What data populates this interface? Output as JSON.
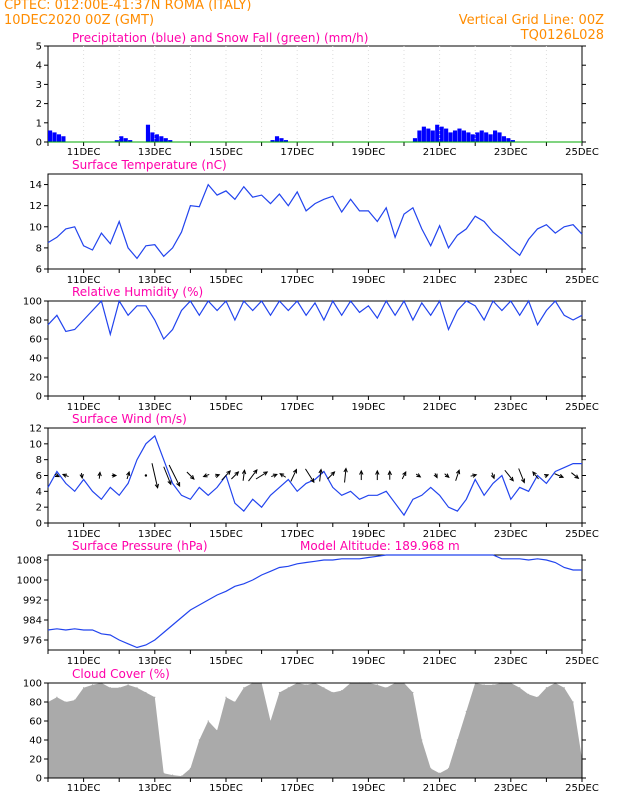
{
  "header": {
    "line1_left": "CPTEC:   012:00E-41:37N   ROMA (ITALY)",
    "line2_left": "10DEC2020 00Z (GMT)",
    "line2_right": "Vertical Grid Line: 00Z",
    "line3_right": "TQ0126L028"
  },
  "colors": {
    "header": "#ff8c00",
    "title": "#ff00aa",
    "precip": "#0000ff",
    "snow": "#00aa00",
    "line": "#2244ee",
    "cloud": "#aaaaaa"
  },
  "date_labels": [
    "11DEC",
    "13DEC",
    "15DEC",
    "17DEC",
    "19DEC",
    "21DEC",
    "23DEC",
    "25DEC"
  ],
  "chart_data": [
    {
      "type": "bar",
      "title": "Precipitation (blue) and Snow Fall (green) (mm/h)",
      "ylim": [
        0,
        5
      ],
      "yticks": [
        0,
        1,
        2,
        3,
        4,
        5
      ],
      "x_start": "10DEC2020 00Z",
      "step_hours": 3,
      "series": [
        {
          "name": "Precipitation",
          "color": "#0000ff",
          "values": [
            0.6,
            0.5,
            0.4,
            0.3,
            0,
            0,
            0,
            0,
            0,
            0,
            0,
            0,
            0,
            0,
            0,
            0.1,
            0.3,
            0.2,
            0.1,
            0,
            0,
            0,
            0.9,
            0.5,
            0.4,
            0.3,
            0.2,
            0.1,
            0,
            0,
            0,
            0,
            0,
            0,
            0,
            0,
            0,
            0,
            0,
            0,
            0,
            0,
            0,
            0,
            0,
            0,
            0,
            0,
            0,
            0,
            0.1,
            0.3,
            0.2,
            0.1,
            0,
            0,
            0,
            0,
            0,
            0,
            0,
            0,
            0,
            0,
            0,
            0,
            0,
            0,
            0,
            0,
            0,
            0,
            0,
            0,
            0,
            0,
            0,
            0,
            0,
            0,
            0,
            0,
            0.2,
            0.6,
            0.8,
            0.7,
            0.6,
            0.9,
            0.8,
            0.7,
            0.5,
            0.6,
            0.7,
            0.6,
            0.5,
            0.4,
            0.5,
            0.6,
            0.5,
            0.4,
            0.6,
            0.5,
            0.3,
            0.2,
            0.1,
            0,
            0,
            0,
            0,
            0,
            0,
            0,
            0,
            0,
            0,
            0,
            0,
            0,
            0,
            0,
            0,
            0,
            0,
            0,
            0,
            0
          ]
        },
        {
          "name": "Snow Fall",
          "color": "#00aa00",
          "values": [
            0,
            0,
            0,
            0,
            0,
            0,
            0,
            0,
            0,
            0,
            0,
            0,
            0,
            0,
            0,
            0,
            0,
            0,
            0,
            0,
            0,
            0,
            0,
            0,
            0,
            0,
            0,
            0,
            0,
            0,
            0,
            0,
            0,
            0,
            0,
            0,
            0,
            0,
            0,
            0,
            0,
            0,
            0,
            0,
            0,
            0,
            0,
            0,
            0,
            0,
            0,
            0,
            0,
            0,
            0,
            0,
            0,
            0,
            0,
            0,
            0,
            0,
            0,
            0,
            0,
            0,
            0,
            0,
            0,
            0,
            0,
            0,
            0,
            0,
            0,
            0,
            0,
            0,
            0,
            0,
            0,
            0,
            0,
            0,
            0,
            0,
            0,
            0,
            0,
            0,
            0,
            0,
            0,
            0,
            0,
            0,
            0,
            0,
            0,
            0,
            0,
            0,
            0,
            0,
            0,
            0,
            0,
            0,
            0,
            0,
            0,
            0,
            0,
            0,
            0,
            0,
            0,
            0,
            0,
            0,
            0
          ]
        }
      ]
    },
    {
      "type": "line",
      "title": "Surface Temperature (nC)",
      "ylim": [
        6,
        15
      ],
      "yticks": [
        6,
        8,
        10,
        12,
        14
      ],
      "x_days": [
        0.0,
        0.25,
        0.5,
        0.75,
        1.0,
        1.25,
        1.5,
        1.75,
        2.0,
        2.25,
        2.5,
        2.75,
        3.0,
        3.25,
        3.5,
        3.75,
        4.0,
        4.25,
        4.5,
        4.75,
        5.0,
        5.25,
        5.5,
        5.75,
        6.0,
        6.25,
        6.5,
        6.75,
        7.0,
        7.25,
        7.5,
        7.75,
        8.0,
        8.25,
        8.5,
        8.75,
        9.0,
        9.25,
        9.5,
        9.75,
        10.0,
        10.25,
        10.5,
        10.75,
        11.0,
        11.25,
        11.5,
        11.75,
        12.0,
        12.25,
        12.5,
        12.75,
        13.0,
        13.25,
        13.5,
        13.75,
        14.0,
        14.25,
        14.5,
        14.75,
        15.0
      ],
      "values": [
        8.5,
        9.0,
        9.8,
        10.0,
        8.2,
        7.8,
        9.4,
        8.4,
        10.5,
        8.0,
        7.0,
        8.2,
        8.3,
        7.2,
        8.0,
        9.5,
        12.0,
        11.9,
        14.0,
        13.0,
        13.4,
        12.6,
        13.8,
        12.8,
        13.0,
        12.2,
        13.1,
        12.0,
        13.3,
        11.5,
        12.2,
        12.6,
        12.9,
        11.4,
        12.6,
        11.5,
        11.5,
        10.5,
        11.8,
        9.0,
        11.2,
        11.8,
        9.8,
        8.2,
        10.1,
        8.0,
        9.2,
        9.8,
        11.0,
        10.5,
        9.5,
        8.8,
        8.0,
        7.3,
        8.8,
        9.8,
        10.2,
        9.4,
        10.0,
        10.2,
        9.3
      ]
    },
    {
      "type": "line",
      "title": "Relative Humidity (%)",
      "ylim": [
        0,
        100
      ],
      "yticks": [
        0,
        20,
        40,
        60,
        80,
        100
      ],
      "x_days": [
        0.0,
        0.25,
        0.5,
        0.75,
        1.0,
        1.25,
        1.5,
        1.75,
        2.0,
        2.25,
        2.5,
        2.75,
        3.0,
        3.25,
        3.5,
        3.75,
        4.0,
        4.25,
        4.5,
        4.75,
        5.0,
        5.25,
        5.5,
        5.75,
        6.0,
        6.25,
        6.5,
        6.75,
        7.0,
        7.25,
        7.5,
        7.75,
        8.0,
        8.25,
        8.5,
        8.75,
        9.0,
        9.25,
        9.5,
        9.75,
        10.0,
        10.25,
        10.5,
        10.75,
        11.0,
        11.25,
        11.5,
        11.75,
        12.0,
        12.25,
        12.5,
        12.75,
        13.0,
        13.25,
        13.5,
        13.75,
        14.0,
        14.25,
        14.5,
        14.75,
        15.0
      ],
      "values": [
        75,
        85,
        68,
        70,
        80,
        90,
        100,
        65,
        100,
        85,
        95,
        95,
        80,
        60,
        70,
        90,
        100,
        85,
        100,
        90,
        100,
        80,
        100,
        90,
        100,
        85,
        100,
        90,
        100,
        85,
        98,
        80,
        100,
        85,
        100,
        88,
        95,
        82,
        100,
        85,
        100,
        80,
        98,
        85,
        100,
        70,
        90,
        100,
        95,
        80,
        100,
        90,
        100,
        85,
        100,
        75,
        90,
        100,
        85,
        80,
        85
      ]
    },
    {
      "type": "line",
      "title": "Surface Wind (m/s)",
      "ylim": [
        0,
        12
      ],
      "yticks": [
        0,
        2,
        4,
        6,
        8,
        10,
        12
      ],
      "x_days": [
        0.0,
        0.25,
        0.5,
        0.75,
        1.0,
        1.25,
        1.5,
        1.75,
        2.0,
        2.25,
        2.5,
        2.75,
        3.0,
        3.25,
        3.5,
        3.75,
        4.0,
        4.25,
        4.5,
        4.75,
        5.0,
        5.25,
        5.5,
        5.75,
        6.0,
        6.25,
        6.5,
        6.75,
        7.0,
        7.25,
        7.5,
        7.75,
        8.0,
        8.25,
        8.5,
        8.75,
        9.0,
        9.25,
        9.5,
        9.75,
        10.0,
        10.25,
        10.5,
        10.75,
        11.0,
        11.25,
        11.5,
        11.75,
        12.0,
        12.25,
        12.5,
        12.75,
        13.0,
        13.25,
        13.5,
        13.75,
        14.0,
        14.25,
        14.5,
        14.75,
        15.0
      ],
      "values": [
        4.5,
        6.5,
        5.0,
        4.0,
        5.5,
        4.0,
        3.0,
        4.5,
        3.5,
        5.0,
        8.0,
        10.0,
        11.0,
        8.0,
        5.0,
        3.5,
        3.0,
        4.5,
        3.5,
        4.5,
        6.0,
        2.5,
        1.5,
        3.0,
        2.0,
        3.5,
        4.5,
        5.5,
        4.0,
        5.0,
        5.5,
        6.5,
        4.5,
        3.5,
        4.0,
        3.0,
        3.5,
        3.5,
        4.0,
        2.5,
        1.0,
        3.0,
        3.5,
        4.5,
        3.5,
        2.0,
        1.5,
        3.0,
        5.5,
        3.5,
        5.0,
        6.0,
        3.0,
        4.5,
        4.0,
        6.0,
        5.0,
        6.5,
        7.0,
        7.5,
        7.5
      ],
      "arrows": [
        {
          "x": 0.25,
          "u": 0.6,
          "v": -0.3
        },
        {
          "x": 0.5,
          "u": -0.8,
          "v": 0.3
        },
        {
          "x": 0.95,
          "u": 0.1,
          "v": -0.7
        },
        {
          "x": 1.45,
          "u": 0.1,
          "v": 0.9
        },
        {
          "x": 1.85,
          "u": 0.6,
          "v": 0.0
        },
        {
          "x": 2.25,
          "u": 0.3,
          "v": 1.0
        },
        {
          "x": 2.75,
          "u": 0.0,
          "v": 0.0
        },
        {
          "x": 3.0,
          "u": 0.8,
          "v": -3.5
        },
        {
          "x": 3.35,
          "u": 1.0,
          "v": -2.5
        },
        {
          "x": 3.55,
          "u": 1.5,
          "v": -3.0
        },
        {
          "x": 4.0,
          "u": 1.0,
          "v": -1.0
        },
        {
          "x": 4.45,
          "u": -0.8,
          "v": -0.3
        },
        {
          "x": 4.75,
          "u": 0.6,
          "v": 0.2
        },
        {
          "x": 5.0,
          "u": 1.2,
          "v": 1.3
        },
        {
          "x": 5.25,
          "u": 1.0,
          "v": 1.0
        },
        {
          "x": 5.5,
          "u": 0.2,
          "v": 1.5
        },
        {
          "x": 5.75,
          "u": 1.2,
          "v": 1.6
        },
        {
          "x": 6.0,
          "u": 1.6,
          "v": 1.0
        },
        {
          "x": 6.35,
          "u": 0.8,
          "v": 0.3
        },
        {
          "x": 6.6,
          "u": -0.8,
          "v": 0.5
        },
        {
          "x": 6.9,
          "u": 0.8,
          "v": 1.7
        },
        {
          "x": 7.35,
          "u": 1.2,
          "v": -1.9
        },
        {
          "x": 7.65,
          "u": 0.2,
          "v": 1.7
        },
        {
          "x": 7.95,
          "u": 1.0,
          "v": 1.0
        },
        {
          "x": 8.35,
          "u": 0.2,
          "v": 2.0
        },
        {
          "x": 8.8,
          "u": 0.0,
          "v": 1.3
        },
        {
          "x": 9.25,
          "u": 0.0,
          "v": 1.3
        },
        {
          "x": 9.6,
          "u": 0.0,
          "v": 1.2
        },
        {
          "x": 10.0,
          "u": 0.5,
          "v": 1.0
        },
        {
          "x": 10.4,
          "u": 0.6,
          "v": -0.4
        },
        {
          "x": 10.9,
          "u": 0.3,
          "v": -0.6
        },
        {
          "x": 11.2,
          "u": 0.6,
          "v": -0.5
        },
        {
          "x": 11.5,
          "u": 0.5,
          "v": 1.5
        },
        {
          "x": 11.95,
          "u": 0.8,
          "v": 0.2
        },
        {
          "x": 12.5,
          "u": 0.3,
          "v": -0.8
        },
        {
          "x": 12.95,
          "u": 1.2,
          "v": -1.5
        },
        {
          "x": 13.3,
          "u": 0.8,
          "v": -2.0
        },
        {
          "x": 13.7,
          "u": -0.8,
          "v": 1.0
        },
        {
          "x": 14.0,
          "u": 0.5,
          "v": 0.2
        },
        {
          "x": 14.35,
          "u": 1.2,
          "v": -0.5
        },
        {
          "x": 14.8,
          "u": 1.0,
          "v": -0.8
        }
      ]
    },
    {
      "type": "line",
      "title": "Surface Pressure (hPa)",
      "annotation": "Model Altitude: 189.968 m",
      "ylim": [
        972,
        1010
      ],
      "yticks": [
        976,
        984,
        992,
        1000,
        1008
      ],
      "x_days": [
        0.0,
        0.25,
        0.5,
        0.75,
        1.0,
        1.25,
        1.5,
        1.75,
        2.0,
        2.25,
        2.5,
        2.75,
        3.0,
        3.25,
        3.5,
        3.75,
        4.0,
        4.25,
        4.5,
        4.75,
        5.0,
        5.25,
        5.5,
        5.75,
        6.0,
        6.25,
        6.5,
        6.75,
        7.0,
        7.25,
        7.5,
        7.75,
        8.0,
        8.25,
        8.5,
        8.75,
        9.0,
        9.25,
        9.5,
        9.75,
        10.0,
        10.25,
        10.5,
        10.75,
        11.0,
        11.25,
        11.5,
        11.75,
        12.0,
        12.25,
        12.5,
        12.75,
        13.0,
        13.25,
        13.5,
        13.75,
        14.0,
        14.25,
        14.5,
        14.75,
        15.0
      ],
      "values": [
        980,
        980.5,
        980,
        980.5,
        980,
        980,
        978.5,
        978,
        976,
        974.5,
        973,
        974,
        976,
        979,
        982,
        985,
        988,
        990,
        992,
        994,
        995.5,
        997.5,
        998.5,
        1000,
        1002,
        1003.5,
        1005,
        1005.5,
        1006.5,
        1007,
        1007.5,
        1008,
        1008,
        1008.5,
        1008.5,
        1008.5,
        1009,
        1009.5,
        1010,
        1010,
        1010,
        1010,
        1010,
        1010,
        1010,
        1010,
        1010,
        1010,
        1010,
        1010,
        1010,
        1008.5,
        1008.5,
        1008.5,
        1008,
        1008.5,
        1008,
        1007,
        1005,
        1004,
        1004
      ]
    },
    {
      "type": "area",
      "title": "Cloud Cover (%)",
      "ylim": [
        0,
        100
      ],
      "yticks": [
        0,
        20,
        40,
        60,
        80,
        100
      ],
      "x_days": [
        0.0,
        0.25,
        0.5,
        0.75,
        1.0,
        1.25,
        1.5,
        1.75,
        2.0,
        2.25,
        2.5,
        2.75,
        3.0,
        3.25,
        3.5,
        3.75,
        4.0,
        4.25,
        4.5,
        4.75,
        5.0,
        5.25,
        5.5,
        5.75,
        6.0,
        6.25,
        6.5,
        6.75,
        7.0,
        7.25,
        7.5,
        7.75,
        8.0,
        8.25,
        8.5,
        8.75,
        9.0,
        9.25,
        9.5,
        9.75,
        10.0,
        10.25,
        10.5,
        10.75,
        11.0,
        11.25,
        11.5,
        11.75,
        12.0,
        12.25,
        12.5,
        12.75,
        13.0,
        13.25,
        13.5,
        13.75,
        14.0,
        14.25,
        14.5,
        14.75,
        15.0
      ],
      "values": [
        80,
        85,
        80,
        82,
        95,
        98,
        100,
        95,
        95,
        98,
        95,
        90,
        85,
        5,
        3,
        2,
        10,
        40,
        60,
        50,
        85,
        80,
        95,
        100,
        100,
        60,
        90,
        95,
        100,
        98,
        100,
        95,
        90,
        92,
        100,
        100,
        100,
        98,
        95,
        100,
        100,
        90,
        40,
        10,
        5,
        10,
        40,
        70,
        100,
        98,
        98,
        100,
        100,
        95,
        88,
        85,
        95,
        100,
        95,
        80,
        20
      ]
    }
  ]
}
